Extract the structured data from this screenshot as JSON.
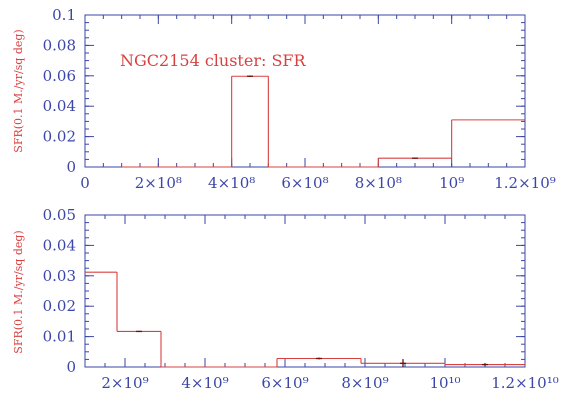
{
  "chart_data": [
    {
      "type": "step",
      "title": "",
      "annotation": "NGC2154 cluster: SFR",
      "ylabel": "SFR(0.1 M./yr/sq deg)",
      "xlabel": "",
      "xlim": [
        0,
        1200000000
      ],
      "ylim": [
        0,
        0.1
      ],
      "x_ticks": [
        {
          "value": 0,
          "label": "0"
        },
        {
          "value": 200000000,
          "label": "2×10⁸"
        },
        {
          "value": 400000000,
          "label": "4×10⁸"
        },
        {
          "value": 600000000,
          "label": "6×10⁸"
        },
        {
          "value": 800000000,
          "label": "8×10⁸"
        },
        {
          "value": 1000000000,
          "label": "10⁹"
        },
        {
          "value": 1200000000,
          "label": "1.2×10⁹"
        }
      ],
      "x_minor_step": 50000000,
      "y_ticks": [
        {
          "value": 0,
          "label": "0"
        },
        {
          "value": 0.02,
          "label": "0.02"
        },
        {
          "value": 0.04,
          "label": "0.04"
        },
        {
          "value": 0.06,
          "label": "0.06"
        },
        {
          "value": 0.08,
          "label": "0.08"
        },
        {
          "value": 0.1,
          "label": "0.1"
        }
      ],
      "y_minor_step": 0.005,
      "bins": [
        {
          "x0": 100000000,
          "x1": 400000000,
          "y": 0.0,
          "err": 0
        },
        {
          "x0": 400000000,
          "x1": 500000000,
          "y": 0.0597,
          "err": 0.0005
        },
        {
          "x0": 500000000,
          "x1": 800000000,
          "y": 0.0,
          "err": 0
        },
        {
          "x0": 800000000,
          "x1": 1000000000,
          "y": 0.0058,
          "err": 0.0004
        },
        {
          "x0": 1000000000,
          "x1": 1200000000,
          "y": 0.031,
          "err": 0
        }
      ],
      "color": "#d94040",
      "axis_color": "#3b46a8"
    },
    {
      "type": "step",
      "title": "",
      "ylabel": "SFR(0.1 M./yr/sq deg)",
      "xlabel": "",
      "xlim": [
        1000000000,
        12000000000
      ],
      "ylim": [
        0,
        0.05
      ],
      "x_ticks": [
        {
          "value": 2000000000,
          "label": "2×10⁹"
        },
        {
          "value": 4000000000,
          "label": "4×10⁹"
        },
        {
          "value": 6000000000,
          "label": "6×10⁹"
        },
        {
          "value": 8000000000,
          "label": "8×10⁹"
        },
        {
          "value": 10000000000,
          "label": "10¹⁰"
        },
        {
          "value": 12000000000,
          "label": "1.2×10¹⁰"
        }
      ],
      "x_minor_step": 500000000,
      "y_ticks": [
        {
          "value": 0,
          "label": "0"
        },
        {
          "value": 0.01,
          "label": "0.01"
        },
        {
          "value": 0.02,
          "label": "0.02"
        },
        {
          "value": 0.03,
          "label": "0.03"
        },
        {
          "value": 0.04,
          "label": "0.04"
        },
        {
          "value": 0.05,
          "label": "0.05"
        }
      ],
      "y_minor_step": 0.0025,
      "bins": [
        {
          "x0": 1000000000,
          "x1": 1800000000,
          "y": 0.0312,
          "err": 0
        },
        {
          "x0": 1800000000,
          "x1": 2900000000,
          "y": 0.0117,
          "err": 0.0002
        },
        {
          "x0": 2900000000,
          "x1": 5800000000,
          "y": 0.0,
          "err": 0
        },
        {
          "x0": 5800000000,
          "x1": 7900000000,
          "y": 0.0028,
          "err": 0.0003
        },
        {
          "x0": 7900000000,
          "x1": 10000000000,
          "y": 0.0012,
          "err": 0.0014
        },
        {
          "x0": 10000000000,
          "x1": 12000000000,
          "y": 0.0008,
          "err": 0.0004
        }
      ],
      "color": "#d94040",
      "axis_color": "#3b46a8"
    }
  ]
}
